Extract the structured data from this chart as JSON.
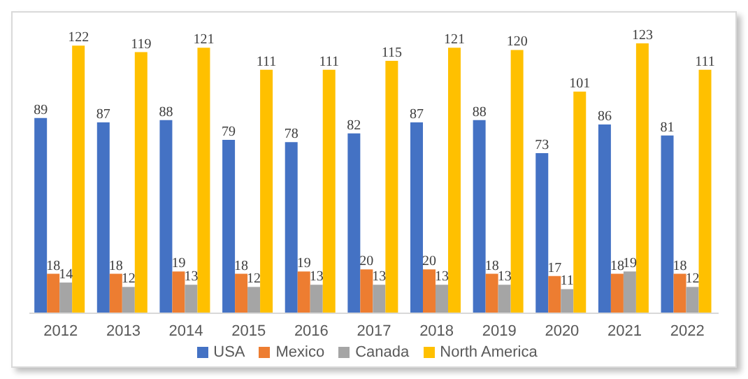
{
  "chart_data": {
    "type": "bar",
    "categories": [
      "2012",
      "2013",
      "2014",
      "2015",
      "2016",
      "2017",
      "2018",
      "2019",
      "2020",
      "2021",
      "2022"
    ],
    "series": [
      {
        "name": "USA",
        "color": "#4472c4",
        "values": [
          89,
          87,
          88,
          79,
          78,
          82,
          87,
          88,
          73,
          86,
          81
        ]
      },
      {
        "name": "Mexico",
        "color": "#ed7d31",
        "values": [
          18,
          18,
          19,
          18,
          19,
          20,
          20,
          18,
          17,
          18,
          18
        ]
      },
      {
        "name": "Canada",
        "color": "#a5a5a5",
        "values": [
          14,
          12,
          13,
          12,
          13,
          13,
          13,
          13,
          11,
          19,
          12
        ]
      },
      {
        "name": "North America",
        "color": "#ffc000",
        "values": [
          122,
          119,
          121,
          111,
          111,
          115,
          121,
          120,
          101,
          123,
          111
        ]
      }
    ],
    "data_labels": true,
    "legend": "bottom",
    "grid": false
  }
}
